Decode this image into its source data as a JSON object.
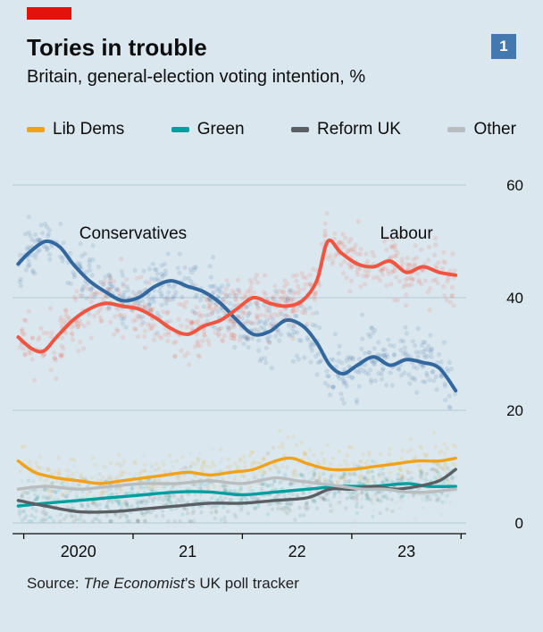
{
  "header": {
    "tag_color": "#e3120b",
    "title": "Tories in trouble",
    "subtitle": "Britain, general-election voting intention, %",
    "badge": "1",
    "badge_color": "#4379ae"
  },
  "legend": [
    {
      "label": "Lib Dems",
      "color": "#f0a31a"
    },
    {
      "label": "Green",
      "color": "#009f9f"
    },
    {
      "label": "Reform UK",
      "color": "#595f63"
    },
    {
      "label": "Other",
      "color": "#b9bdbf"
    }
  ],
  "source": {
    "prefix": "Source: ",
    "publication": "The Economist",
    "suffix": "’s UK poll tracker"
  },
  "chart_data": {
    "type": "line",
    "title": "Tories in trouble",
    "subtitle": "Britain, general-election voting intention, %",
    "ylabel": "%",
    "grid": true,
    "legend_position": "top",
    "scatter_overlay": true,
    "xdomain": [
      2019.93,
      2024.03
    ],
    "ydomain": [
      0,
      60
    ],
    "yticks": [
      0,
      20,
      40,
      60
    ],
    "xticks": [
      {
        "pos": 2020.5,
        "label": "2020"
      },
      {
        "pos": 2021.5,
        "label": "21"
      },
      {
        "pos": 2022.5,
        "label": "22"
      },
      {
        "pos": 2023.5,
        "label": "23"
      }
    ],
    "xtick_marks": [
      2020,
      2021,
      2022,
      2023,
      2024
    ],
    "annotations": [
      {
        "label": "Conservatives",
        "x": 2021.0,
        "y": 50.5
      },
      {
        "label": "Labour",
        "x": 2023.5,
        "y": 50.5
      }
    ],
    "series": [
      {
        "name": "Conservatives",
        "color": "#33689f",
        "group": "major",
        "points": [
          [
            2019.95,
            46
          ],
          [
            2020.05,
            48
          ],
          [
            2020.2,
            50
          ],
          [
            2020.33,
            49
          ],
          [
            2020.45,
            46
          ],
          [
            2020.6,
            43
          ],
          [
            2020.75,
            41
          ],
          [
            2020.9,
            39.5
          ],
          [
            2021.05,
            40
          ],
          [
            2021.2,
            42
          ],
          [
            2021.35,
            43
          ],
          [
            2021.5,
            42
          ],
          [
            2021.65,
            41
          ],
          [
            2021.8,
            39
          ],
          [
            2021.95,
            36
          ],
          [
            2022.1,
            33.5
          ],
          [
            2022.25,
            34
          ],
          [
            2022.4,
            36
          ],
          [
            2022.55,
            35
          ],
          [
            2022.68,
            32
          ],
          [
            2022.8,
            28
          ],
          [
            2022.92,
            26.5
          ],
          [
            2023.05,
            28
          ],
          [
            2023.2,
            29.5
          ],
          [
            2023.35,
            28
          ],
          [
            2023.5,
            29
          ],
          [
            2023.65,
            28.5
          ],
          [
            2023.8,
            27.5
          ],
          [
            2023.95,
            23.5
          ]
        ]
      },
      {
        "name": "Labour",
        "color": "#ef5540",
        "group": "major",
        "points": [
          [
            2019.95,
            33
          ],
          [
            2020.07,
            31
          ],
          [
            2020.18,
            30.5
          ],
          [
            2020.3,
            33
          ],
          [
            2020.45,
            36
          ],
          [
            2020.6,
            38
          ],
          [
            2020.75,
            39
          ],
          [
            2020.9,
            38.5
          ],
          [
            2021.05,
            38
          ],
          [
            2021.2,
            36.5
          ],
          [
            2021.35,
            34.5
          ],
          [
            2021.5,
            33.5
          ],
          [
            2021.65,
            35
          ],
          [
            2021.8,
            36
          ],
          [
            2021.95,
            38
          ],
          [
            2022.1,
            40
          ],
          [
            2022.25,
            39
          ],
          [
            2022.4,
            38.5
          ],
          [
            2022.55,
            39.5
          ],
          [
            2022.68,
            43
          ],
          [
            2022.78,
            50
          ],
          [
            2022.9,
            48
          ],
          [
            2023.05,
            46
          ],
          [
            2023.2,
            45.5
          ],
          [
            2023.35,
            46.5
          ],
          [
            2023.5,
            44.5
          ],
          [
            2023.65,
            45.5
          ],
          [
            2023.8,
            44.5
          ],
          [
            2023.95,
            44
          ]
        ]
      },
      {
        "name": "Lib Dems",
        "color": "#f0a31a",
        "group": "minor",
        "points": [
          [
            2019.95,
            11
          ],
          [
            2020.1,
            9
          ],
          [
            2020.3,
            8
          ],
          [
            2020.5,
            7.5
          ],
          [
            2020.7,
            7
          ],
          [
            2020.9,
            7.5
          ],
          [
            2021.1,
            8
          ],
          [
            2021.3,
            8.5
          ],
          [
            2021.5,
            9
          ],
          [
            2021.7,
            8.5
          ],
          [
            2021.9,
            9
          ],
          [
            2022.1,
            9.5
          ],
          [
            2022.3,
            11
          ],
          [
            2022.45,
            11.5
          ],
          [
            2022.6,
            10.5
          ],
          [
            2022.8,
            9.5
          ],
          [
            2023.0,
            9.5
          ],
          [
            2023.2,
            10
          ],
          [
            2023.4,
            10.5
          ],
          [
            2023.6,
            11
          ],
          [
            2023.8,
            11
          ],
          [
            2023.95,
            11.5
          ]
        ]
      },
      {
        "name": "Green",
        "color": "#009f9f",
        "group": "minor",
        "points": [
          [
            2019.95,
            3
          ],
          [
            2020.2,
            3.5
          ],
          [
            2020.5,
            4
          ],
          [
            2020.8,
            4.5
          ],
          [
            2021.1,
            5
          ],
          [
            2021.4,
            5.5
          ],
          [
            2021.7,
            5.5
          ],
          [
            2022.0,
            5
          ],
          [
            2022.3,
            5.5
          ],
          [
            2022.6,
            6
          ],
          [
            2022.9,
            6.5
          ],
          [
            2023.2,
            6.5
          ],
          [
            2023.5,
            7
          ],
          [
            2023.7,
            6.5
          ],
          [
            2023.95,
            6.5
          ]
        ]
      },
      {
        "name": "Reform UK",
        "color": "#595f63",
        "group": "minor",
        "points": [
          [
            2019.95,
            4
          ],
          [
            2020.2,
            3
          ],
          [
            2020.5,
            2
          ],
          [
            2020.8,
            2
          ],
          [
            2021.1,
            2.5
          ],
          [
            2021.4,
            3
          ],
          [
            2021.7,
            3.5
          ],
          [
            2022.0,
            3.5
          ],
          [
            2022.3,
            4
          ],
          [
            2022.6,
            4.5
          ],
          [
            2022.8,
            6
          ],
          [
            2023.0,
            6
          ],
          [
            2023.2,
            6.5
          ],
          [
            2023.4,
            6
          ],
          [
            2023.6,
            6.5
          ],
          [
            2023.8,
            7.5
          ],
          [
            2023.95,
            9.5
          ]
        ]
      },
      {
        "name": "Other",
        "color": "#b9bdbf",
        "group": "minor",
        "points": [
          [
            2019.95,
            6
          ],
          [
            2020.2,
            6.5
          ],
          [
            2020.5,
            6
          ],
          [
            2020.8,
            6.5
          ],
          [
            2021.1,
            7
          ],
          [
            2021.4,
            7
          ],
          [
            2021.7,
            7.5
          ],
          [
            2022.0,
            7
          ],
          [
            2022.3,
            8
          ],
          [
            2022.5,
            7.5
          ],
          [
            2022.7,
            7
          ],
          [
            2022.9,
            6.5
          ],
          [
            2023.1,
            6
          ],
          [
            2023.3,
            6
          ],
          [
            2023.5,
            5.5
          ],
          [
            2023.7,
            5.5
          ],
          [
            2023.95,
            6
          ]
        ]
      }
    ]
  }
}
